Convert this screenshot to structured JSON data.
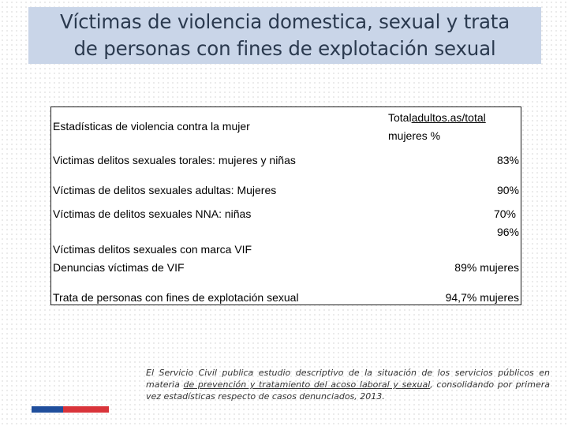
{
  "title": {
    "line1": "Víctimas de violencia domestica, sexual y trata",
    "line2": "de personas con fines de explotación sexual"
  },
  "table": {
    "header_left": "Estadísticas de violencia  contra la mujer",
    "header_right_1": "Total",
    "header_right_1_link": "adultos.as/total",
    "header_right_2": "mujeres %",
    "rows": [
      {
        "label": "Victimas delitos sexuales torales: mujeres y niñas",
        "value": "83%"
      },
      {
        "label": "Víctimas de delitos sexuales adultas: Mujeres",
        "value": "90%"
      },
      {
        "label": "Víctimas de delitos sexuales NNA: niñas",
        "value": "70%"
      },
      {
        "label": "Víctimas delitos sexuales con marca VIF",
        "value": "96%"
      },
      {
        "label": "Denuncias víctimas de VIF",
        "value": "89% mujeres"
      },
      {
        "label": "Trata de personas con fines de explotación sexual",
        "value": "94,7% mujeres"
      }
    ]
  },
  "note": {
    "part1": "El Servicio Civil publica estudio descriptivo de la situación de los servicios públicos en materia ",
    "link": "de prevención y tratamiento del acoso laboral y sexual",
    "part2": ", consolidando por primera vez estadísticas respecto de casos denunciados, 2013."
  },
  "colors": {
    "title_bg": "#c9d5e8",
    "flag_blue": "#1f4e9c",
    "flag_red": "#d9343a"
  }
}
